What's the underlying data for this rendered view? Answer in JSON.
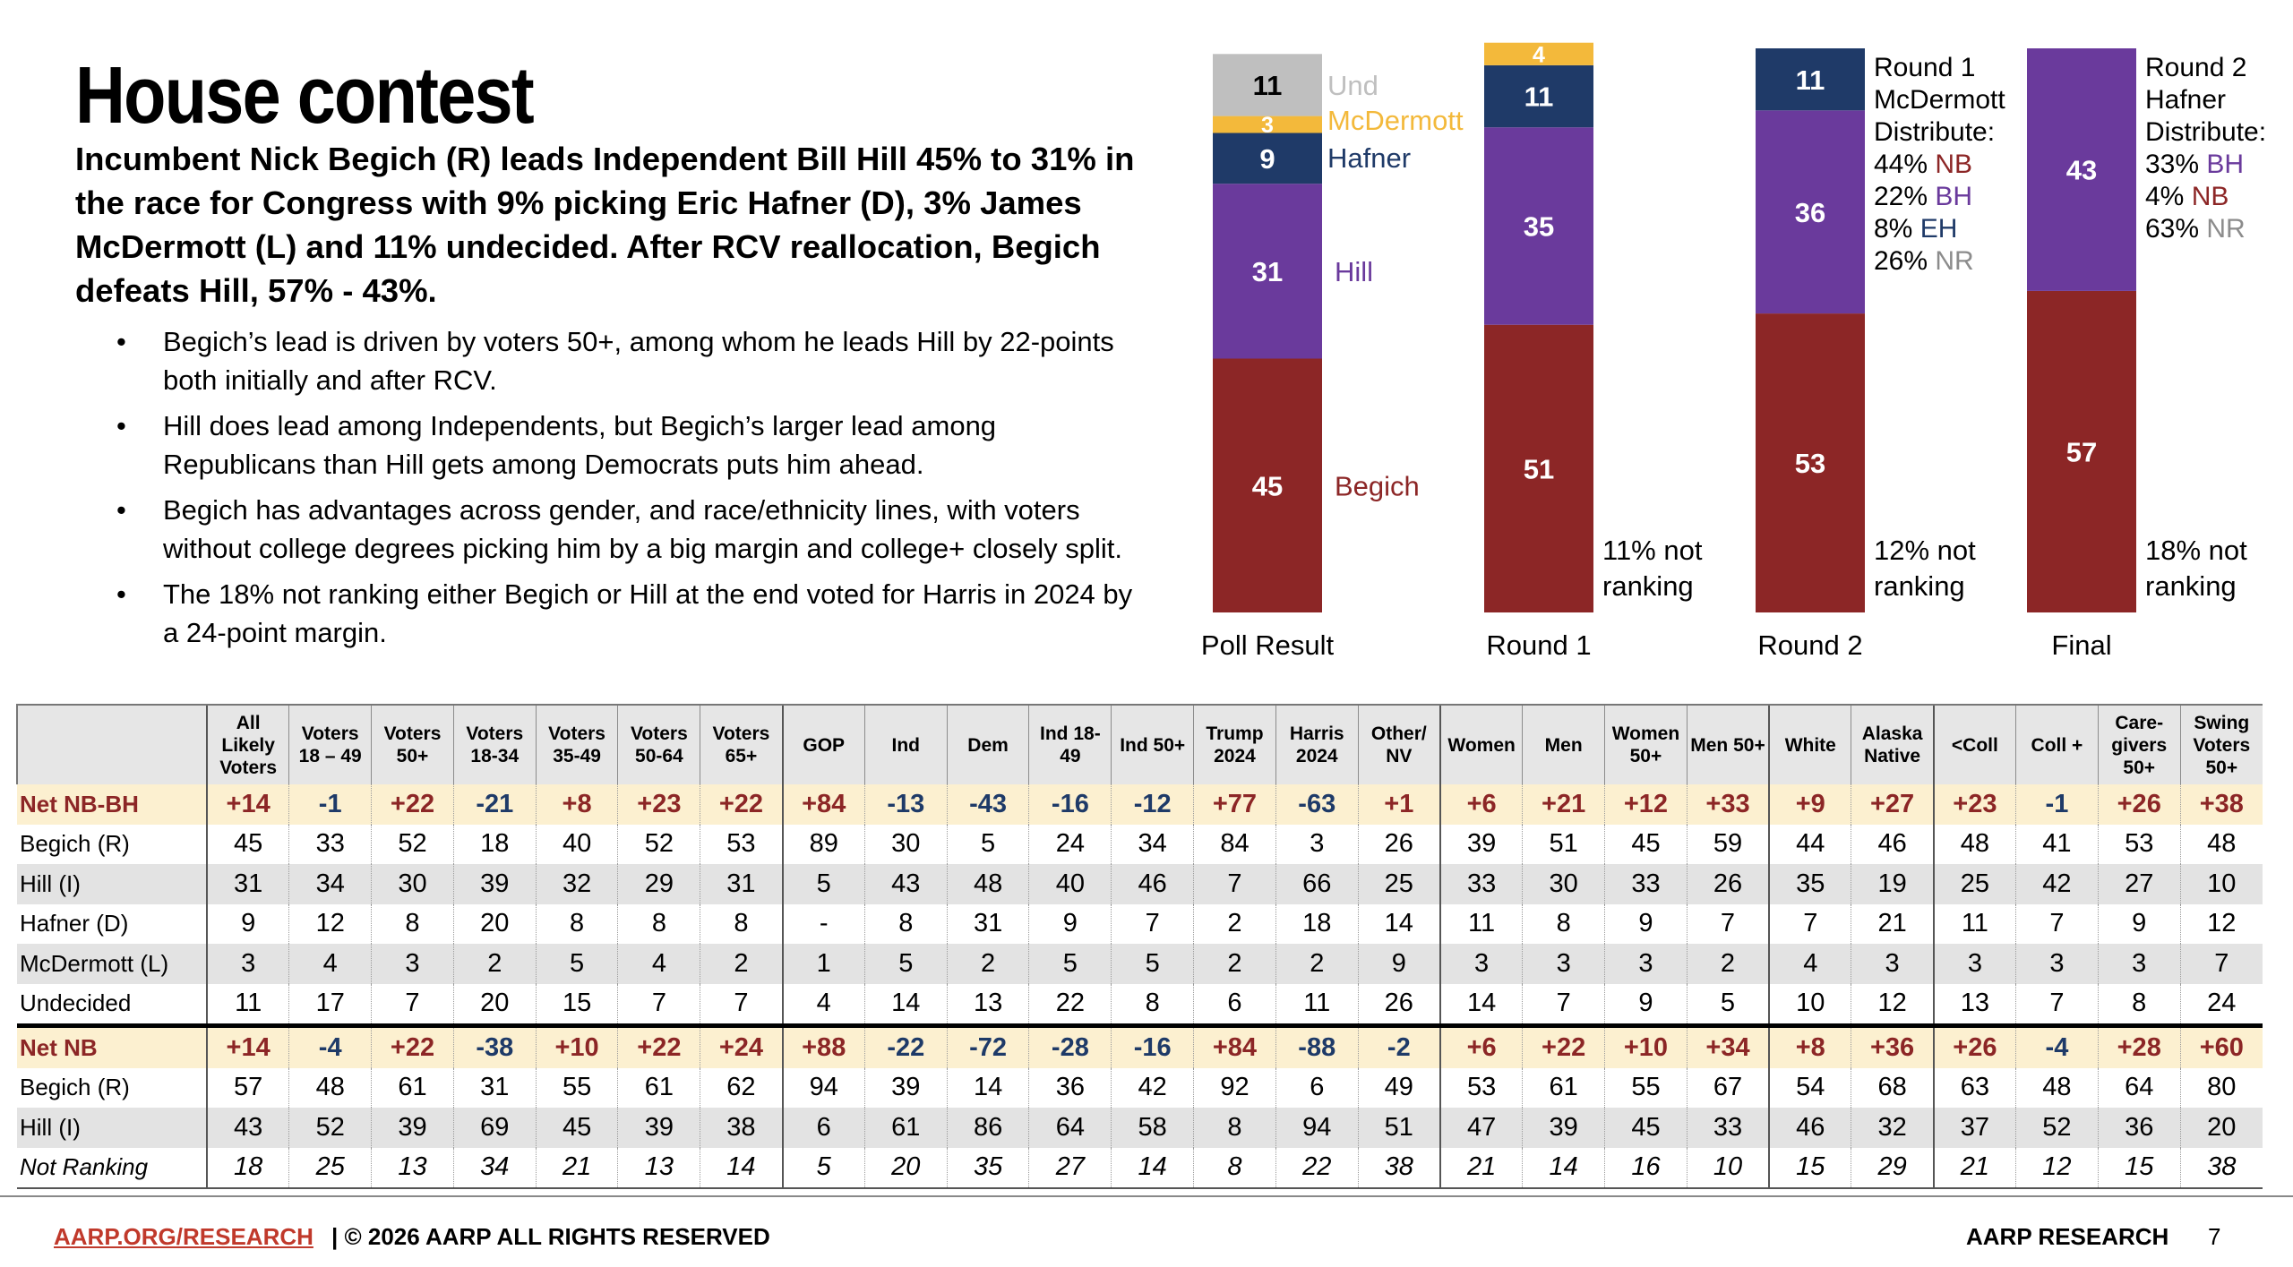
{
  "title": "House contest",
  "subtitle": "Incumbent Nick Begich (R) leads Independent Bill Hill 45% to 31% in the race for Congress with 9% picking Eric Hafner (D), 3% James McDermott (L) and 11% undecided. After RCV reallocation, Begich defeats Hill, 57% - 43%.",
  "bullets": [
    "Begich’s lead is driven by voters 50+, among whom he leads Hill by 22-points both initially and after RCV.",
    "Hill does lead among Independents, but Begich’s larger lead among Republicans than Hill gets among Democrats puts him ahead.",
    "Begich has advantages across gender, and race/ethnicity lines, with voters without college degrees picking him by a big margin and college+ closely split.",
    "The 18% not ranking either Begich or Hill at the end voted for Harris in 2024 by a 24-point margin."
  ],
  "colors": {
    "begich": "#8c2626",
    "hill": "#6a3a9c",
    "hafner": "#1f3a68",
    "mcdermott": "#f3b93b",
    "undecided": "#bfbfbf",
    "net_row_bg": "#fcf0d0",
    "shade_row_bg": "#e3e3e3",
    "link": "#c0392b"
  },
  "chart_data": {
    "type": "bar",
    "stacked": true,
    "ylim": [
      0,
      100
    ],
    "categories": [
      "Poll Result",
      "Round 1",
      "Round 2",
      "Final"
    ],
    "series": [
      {
        "name": "Begich",
        "key": "begich",
        "values": [
          45,
          51,
          53,
          57
        ]
      },
      {
        "name": "Hill",
        "key": "hill",
        "values": [
          31,
          35,
          36,
          43
        ]
      },
      {
        "name": "Hafner",
        "key": "hafner",
        "values": [
          9,
          11,
          11,
          0
        ]
      },
      {
        "name": "McDermott",
        "key": "mcdermott",
        "values": [
          3,
          4,
          0,
          0
        ]
      },
      {
        "name": "Und",
        "key": "undecided",
        "values": [
          11,
          0,
          0,
          0
        ]
      }
    ],
    "not_ranking": [
      "",
      "11% not ranking",
      "12% not ranking",
      "18% not ranking"
    ],
    "annotations": [
      {
        "after": 2,
        "lines": [
          {
            "text": "Round 1"
          },
          {
            "text": "McDermott"
          },
          {
            "text": "Distribute:"
          },
          {
            "text": "44% ",
            "tag": "NB",
            "color": "begich"
          },
          {
            "text": "22% ",
            "tag": "BH",
            "color": "hill"
          },
          {
            "text": "8% ",
            "tag": "EH",
            "color": "hafner"
          },
          {
            "text": "26% ",
            "tag": "NR",
            "color": "grey"
          }
        ]
      },
      {
        "after": 3,
        "lines": [
          {
            "text": "Round 2"
          },
          {
            "text": "Hafner"
          },
          {
            "text": "Distribute:"
          },
          {
            "text": "33% ",
            "tag": "BH",
            "color": "hill"
          },
          {
            "text": "4% ",
            "tag": "NB",
            "color": "begich"
          },
          {
            "text": "63% ",
            "tag": "NR",
            "color": "grey"
          }
        ]
      }
    ]
  },
  "table": {
    "columns": [
      "All Likely Voters",
      "Voters 18 – 49",
      "Voters 50+",
      "Voters 18-34",
      "Voters 35-49",
      "Voters 50-64",
      "Voters 65+",
      "GOP",
      "Ind",
      "Dem",
      "Ind 18-49",
      "Ind 50+",
      "Trump 2024",
      "Harris 2024",
      "Other/ NV",
      "Women",
      "Men",
      "Women 50+",
      "Men 50+",
      "White",
      "Alaska Native",
      "<Coll",
      "Coll +",
      "Care-givers 50+",
      "Swing Voters 50+"
    ],
    "rows": [
      {
        "label": "Net NB-BH",
        "style": "net",
        "values": [
          "+14",
          "-1",
          "+22",
          "-21",
          "+8",
          "+23",
          "+22",
          "+84",
          "-13",
          "-43",
          "-16",
          "-12",
          "+77",
          "-63",
          "+1",
          "+6",
          "+21",
          "+12",
          "+33",
          "+9",
          "+27",
          "+23",
          "-1",
          "+26",
          "+38"
        ]
      },
      {
        "label": "Begich (R)",
        "style": "plain",
        "values": [
          "45",
          "33",
          "52",
          "18",
          "40",
          "52",
          "53",
          "89",
          "30",
          "5",
          "24",
          "34",
          "84",
          "3",
          "26",
          "39",
          "51",
          "45",
          "59",
          "44",
          "46",
          "48",
          "41",
          "53",
          "48"
        ]
      },
      {
        "label": "Hill (I)",
        "style": "shade",
        "values": [
          "31",
          "34",
          "30",
          "39",
          "32",
          "29",
          "31",
          "5",
          "43",
          "48",
          "40",
          "46",
          "7",
          "66",
          "25",
          "33",
          "30",
          "33",
          "26",
          "35",
          "19",
          "25",
          "42",
          "27",
          "10"
        ]
      },
      {
        "label": "Hafner (D)",
        "style": "plain",
        "values": [
          "9",
          "12",
          "8",
          "20",
          "8",
          "8",
          "8",
          "-",
          "8",
          "31",
          "9",
          "7",
          "2",
          "18",
          "14",
          "11",
          "8",
          "9",
          "7",
          "7",
          "21",
          "11",
          "7",
          "9",
          "12"
        ]
      },
      {
        "label": "McDermott (L)",
        "style": "shade",
        "values": [
          "3",
          "4",
          "3",
          "2",
          "5",
          "4",
          "2",
          "1",
          "5",
          "2",
          "5",
          "5",
          "2",
          "2",
          "9",
          "3",
          "3",
          "3",
          "2",
          "4",
          "3",
          "3",
          "3",
          "3",
          "7"
        ]
      },
      {
        "label": "Undecided",
        "style": "plain",
        "values": [
          "11",
          "17",
          "7",
          "20",
          "15",
          "7",
          "7",
          "4",
          "14",
          "13",
          "22",
          "8",
          "6",
          "11",
          "26",
          "14",
          "7",
          "9",
          "5",
          "10",
          "12",
          "13",
          "7",
          "8",
          "24"
        ]
      },
      {
        "label": "Net NB",
        "style": "net thick",
        "values": [
          "+14",
          "-4",
          "+22",
          "-38",
          "+10",
          "+22",
          "+24",
          "+88",
          "-22",
          "-72",
          "-28",
          "-16",
          "+84",
          "-88",
          "-2",
          "+6",
          "+22",
          "+10",
          "+34",
          "+8",
          "+36",
          "+26",
          "-4",
          "+28",
          "+60"
        ]
      },
      {
        "label": "Begich (R)",
        "style": "plain",
        "values": [
          "57",
          "48",
          "61",
          "31",
          "55",
          "61",
          "62",
          "94",
          "39",
          "14",
          "36",
          "42",
          "92",
          "6",
          "49",
          "53",
          "61",
          "55",
          "67",
          "54",
          "68",
          "63",
          "48",
          "64",
          "80"
        ]
      },
      {
        "label": "Hill (I)",
        "style": "shade",
        "values": [
          "43",
          "52",
          "39",
          "69",
          "45",
          "39",
          "38",
          "6",
          "61",
          "86",
          "64",
          "58",
          "8",
          "94",
          "51",
          "47",
          "39",
          "45",
          "33",
          "46",
          "32",
          "37",
          "52",
          "36",
          "20"
        ]
      },
      {
        "label": "Not Ranking",
        "style": "italic",
        "values": [
          "18",
          "25",
          "13",
          "34",
          "21",
          "13",
          "14",
          "5",
          "20",
          "35",
          "27",
          "14",
          "8",
          "22",
          "38",
          "21",
          "14",
          "16",
          "10",
          "15",
          "29",
          "21",
          "12",
          "15",
          "38"
        ]
      }
    ]
  },
  "footer": {
    "link": "AARP.ORG/RESEARCH",
    "copyright": "| © 2026 AARP ALL RIGHTS RESERVED",
    "brand": "AARP RESEARCH",
    "page": "7"
  }
}
